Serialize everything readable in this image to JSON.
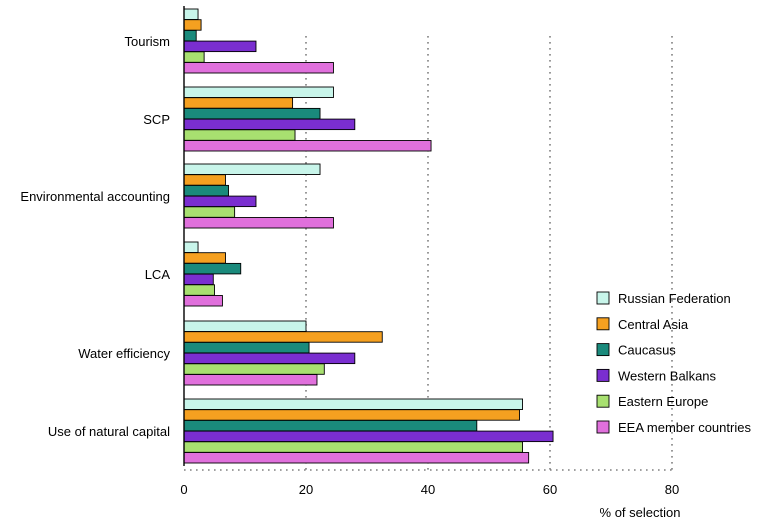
{
  "chart_data": {
    "type": "bar",
    "orientation": "horizontal",
    "title": "",
    "xlabel": "% of selection",
    "ylabel": "",
    "xlim": [
      0,
      80
    ],
    "xticks": [
      0,
      20,
      40,
      60,
      80
    ],
    "grid": true,
    "legend_position": "right",
    "categories": [
      "Tourism",
      "SCP",
      "Environmental accounting",
      "LCA",
      "Water efficiency",
      "Use of natural capital"
    ],
    "series": [
      {
        "name": "Russian Federation",
        "color": "#c8f5ea",
        "values": [
          2.3,
          24.5,
          22.3,
          2.3,
          20.0,
          55.5
        ]
      },
      {
        "name": "Central Asia",
        "color": "#f5a020",
        "values": [
          2.8,
          17.8,
          6.8,
          6.8,
          32.5,
          55.0
        ]
      },
      {
        "name": "Caucasus",
        "color": "#1a8a7c",
        "values": [
          2.0,
          22.3,
          7.3,
          9.3,
          20.5,
          48.0
        ]
      },
      {
        "name": "Western Balkans",
        "color": "#7a2ed0",
        "values": [
          11.8,
          28.0,
          11.8,
          4.8,
          28.0,
          60.5
        ]
      },
      {
        "name": "Eastern Europe",
        "color": "#a8e070",
        "values": [
          3.3,
          18.2,
          8.3,
          5.0,
          23.0,
          55.5
        ]
      },
      {
        "name": "EEA member countries",
        "color": "#e070dc",
        "values": [
          24.5,
          40.5,
          24.5,
          6.3,
          21.8,
          56.5
        ]
      }
    ]
  }
}
